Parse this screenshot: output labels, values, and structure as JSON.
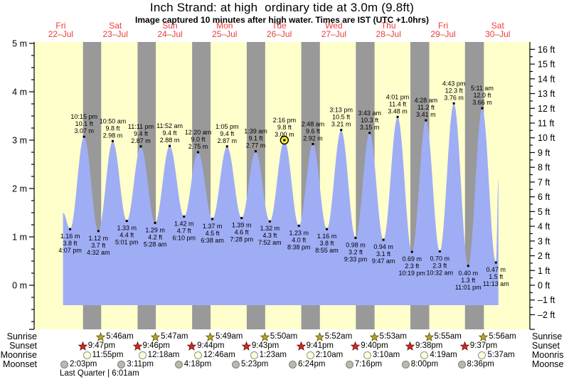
{
  "title": "Inch Strand: at high  ordinary tide at 3.0m (9.8ft)",
  "subtitle": "Image captured 10 minutes after high water. Times are IST (UTC +1.0hrs)",
  "colors": {
    "day_bg": "#ffffcc",
    "night_band": "#999999",
    "tide_fill": "#9fadf5",
    "day_label": "#ee3b3b",
    "current_marker": "#ffee33",
    "annotation_text": "#000000",
    "axis_text": "#000000",
    "sunrise_star_fill": "#b9a62c",
    "sunrise_star_stroke": "#6f6412",
    "sunset_star_fill": "#d22c20",
    "sunset_star_stroke": "#7c120c",
    "moonrise_moon_fill": "#ffffd9",
    "moonrise_moon_stroke": "#8f8f8f",
    "moonset_moon_fill": "#b9b9ae",
    "moonset_moon_stroke": "#7f7f7f"
  },
  "chart_data": {
    "type": "area",
    "title": "Inch Strand: at high  ordinary tide at 3.0m (9.8ft)",
    "subtitle": "Image captured 10 minutes after high water. Times are IST (UTC +1.0hrs)",
    "x_axis": {
      "days": [
        {
          "name": "Fri",
          "date": "22–Jul"
        },
        {
          "name": "Sat",
          "date": "23–Jul"
        },
        {
          "name": "Sun",
          "date": "24–Jul"
        },
        {
          "name": "Mon",
          "date": "25–Jul"
        },
        {
          "name": "Tue",
          "date": "26–Jul"
        },
        {
          "name": "Wed",
          "date": "27–Jul"
        },
        {
          "name": "Thu",
          "date": "28–Jul"
        },
        {
          "name": "Fri",
          "date": "29–Jul"
        },
        {
          "name": "Sat",
          "date": "30–Jul"
        }
      ]
    },
    "y_axis_left": {
      "unit": "m",
      "ticks": [
        5,
        4,
        3,
        2,
        1,
        0
      ],
      "minor_step": 0.25,
      "range_m": [
        -0.93,
        5.03
      ]
    },
    "y_axis_right": {
      "unit": "ft",
      "ticks": [
        16,
        15,
        14,
        13,
        12,
        11,
        10,
        9,
        8,
        7,
        6,
        5,
        4,
        3,
        2,
        1,
        0,
        -1,
        -2
      ],
      "minor_step": 0.5
    },
    "tide_events": [
      {
        "kind": "low",
        "time": "4:07 pm",
        "ft": "3.8 ft",
        "m": "1.16 m",
        "day": 0,
        "hour": 16.117,
        "height_m": 1.16
      },
      {
        "kind": "high",
        "time": "10:15 pm",
        "ft": "10.1 ft",
        "m": "3.07 m",
        "day": 0,
        "hour": 22.25,
        "height_m": 3.07
      },
      {
        "kind": "low",
        "time": "4:32 am",
        "ft": "3.7 ft",
        "m": "1.12 m",
        "day": 1,
        "hour": 4.533,
        "height_m": 1.12
      },
      {
        "kind": "high",
        "time": "10:50 am",
        "ft": "9.8 ft",
        "m": "2.98 m",
        "day": 1,
        "hour": 10.833,
        "height_m": 2.98
      },
      {
        "kind": "low",
        "time": "5:01 pm",
        "ft": "4.4 ft",
        "m": "1.33 m",
        "day": 1,
        "hour": 17.017,
        "height_m": 1.33
      },
      {
        "kind": "high",
        "time": "11:11 pm",
        "ft": "9.4 ft",
        "m": "2.87 m",
        "day": 1,
        "hour": 23.183,
        "height_m": 2.87
      },
      {
        "kind": "low",
        "time": "5:28 am",
        "ft": "4.2 ft",
        "m": "1.29 m",
        "day": 2,
        "hour": 5.467,
        "height_m": 1.29
      },
      {
        "kind": "high",
        "time": "11:52 am",
        "ft": "9.4 ft",
        "m": "2.88 m",
        "day": 2,
        "hour": 11.867,
        "height_m": 2.88
      },
      {
        "kind": "low",
        "time": "6:10 pm",
        "ft": "4.7 ft",
        "m": "1.42 m",
        "day": 2,
        "hour": 18.167,
        "height_m": 1.42
      },
      {
        "kind": "high",
        "time": "12:20 am",
        "ft": "9.0 ft",
        "m": "2.75 m",
        "day": 3,
        "hour": 0.333,
        "height_m": 2.75
      },
      {
        "kind": "low",
        "time": "6:38 am",
        "ft": "4.5 ft",
        "m": "1.37 m",
        "day": 3,
        "hour": 6.633,
        "height_m": 1.37
      },
      {
        "kind": "high",
        "time": "1:05 pm",
        "ft": "9.4 ft",
        "m": "2.87 m",
        "day": 3,
        "hour": 13.083,
        "height_m": 2.87
      },
      {
        "kind": "low",
        "time": "7:28 pm",
        "ft": "4.6 ft",
        "m": "1.39 m",
        "day": 3,
        "hour": 19.467,
        "height_m": 1.39
      },
      {
        "kind": "high",
        "time": "1:39 am",
        "ft": "9.1 ft",
        "m": "2.77 m",
        "day": 4,
        "hour": 1.65,
        "height_m": 2.77
      },
      {
        "kind": "low",
        "time": "7:52 am",
        "ft": "4.3 ft",
        "m": "1.32 m",
        "day": 4,
        "hour": 7.867,
        "height_m": 1.32
      },
      {
        "kind": "high",
        "time": "2:16 pm",
        "ft": "9.8 ft",
        "m": "3.00 m",
        "day": 4,
        "hour": 14.267,
        "height_m": 3.0
      },
      {
        "kind": "low",
        "time": "8:38 pm",
        "ft": "4.0 ft",
        "m": "1.23 m",
        "day": 4,
        "hour": 20.633,
        "height_m": 1.23
      },
      {
        "kind": "high",
        "time": "2:48 am",
        "ft": "9.6 ft",
        "m": "2.92 m",
        "day": 5,
        "hour": 2.8,
        "height_m": 2.92
      },
      {
        "kind": "low",
        "time": "8:55 am",
        "ft": "3.8 ft",
        "m": "1.16 m",
        "day": 5,
        "hour": 8.917,
        "height_m": 1.16
      },
      {
        "kind": "high",
        "time": "3:13 pm",
        "ft": "10.5 ft",
        "m": "3.21 m",
        "day": 5,
        "hour": 15.217,
        "height_m": 3.21
      },
      {
        "kind": "low",
        "time": "9:33 pm",
        "ft": "3.2 ft",
        "m": "0.98 m",
        "day": 5,
        "hour": 21.55,
        "height_m": 0.98
      },
      {
        "kind": "high",
        "time": "3:43 am",
        "ft": "10.3 ft",
        "m": "3.15 m",
        "day": 6,
        "hour": 3.717,
        "height_m": 3.15
      },
      {
        "kind": "low",
        "time": "9:47 am",
        "ft": "3.1 ft",
        "m": "0.94 m",
        "day": 6,
        "hour": 9.783,
        "height_m": 0.94
      },
      {
        "kind": "high",
        "time": "4:01 pm",
        "ft": "11.4 ft",
        "m": "3.48 m",
        "day": 6,
        "hour": 16.017,
        "height_m": 3.48
      },
      {
        "kind": "low",
        "time": "10:19 pm",
        "ft": "2.3 ft",
        "m": "0.69 m",
        "day": 6,
        "hour": 22.317,
        "height_m": 0.69
      },
      {
        "kind": "high",
        "time": "4:28 am",
        "ft": "11.2 ft",
        "m": "3.41 m",
        "day": 7,
        "hour": 4.467,
        "height_m": 3.41
      },
      {
        "kind": "low",
        "time": "10:32 am",
        "ft": "2.3 ft",
        "m": "0.70 m",
        "day": 7,
        "hour": 10.533,
        "height_m": 0.7
      },
      {
        "kind": "high",
        "time": "4:43 pm",
        "ft": "12.3 ft",
        "m": "3.76 m",
        "day": 7,
        "hour": 16.717,
        "height_m": 3.76
      },
      {
        "kind": "low",
        "time": "11:01 pm",
        "ft": "1.3 ft",
        "m": "0.40 m",
        "day": 7,
        "hour": 23.017,
        "height_m": 0.4
      },
      {
        "kind": "high",
        "time": "5:11 am",
        "ft": "12.0 ft",
        "m": "3.66 m",
        "day": 8,
        "hour": 5.183,
        "height_m": 3.66
      },
      {
        "kind": "low",
        "time": "11:13 am",
        "ft": "1.5 ft",
        "m": "0.47 m",
        "day": 8,
        "hour": 11.217,
        "height_m": 0.47
      }
    ],
    "current_event_index": 15,
    "curve_edges": {
      "start": {
        "day": 0,
        "hour": 13.0,
        "height_m": 1.5
      },
      "end": {
        "day": 8,
        "hour": 12.3,
        "height_m": 2.2
      }
    }
  },
  "astronomy": {
    "rows": [
      {
        "key": "sunrise",
        "label": "Sunrise",
        "events": [
          {
            "time": "5:46am",
            "day": 1,
            "hour": 5.767
          },
          {
            "time": "5:47am",
            "day": 2,
            "hour": 5.783
          },
          {
            "time": "5:49am",
            "day": 3,
            "hour": 5.817
          },
          {
            "time": "5:50am",
            "day": 4,
            "hour": 5.833
          },
          {
            "time": "5:52am",
            "day": 5,
            "hour": 5.867
          },
          {
            "time": "5:53am",
            "day": 6,
            "hour": 5.883
          },
          {
            "time": "5:55am",
            "day": 7,
            "hour": 5.917
          },
          {
            "time": "5:56am",
            "day": 8,
            "hour": 5.933
          }
        ]
      },
      {
        "key": "sunset",
        "label": "Sunset",
        "events": [
          {
            "time": "9:47pm",
            "day": 0,
            "hour": 21.783
          },
          {
            "time": "9:46pm",
            "day": 1,
            "hour": 21.767
          },
          {
            "time": "9:44pm",
            "day": 2,
            "hour": 21.733
          },
          {
            "time": "9:43pm",
            "day": 3,
            "hour": 21.717
          },
          {
            "time": "9:41pm",
            "day": 4,
            "hour": 21.683
          },
          {
            "time": "9:40pm",
            "day": 5,
            "hour": 21.667
          },
          {
            "time": "9:38pm",
            "day": 6,
            "hour": 21.633
          },
          {
            "time": "9:37pm",
            "day": 7,
            "hour": 21.617
          }
        ]
      },
      {
        "key": "moonrise",
        "label": "Moonrise",
        "events": [
          {
            "time": "11:55pm",
            "day": 0,
            "hour": 23.917
          },
          {
            "time": "12:18am",
            "day": 2,
            "hour": 0.3
          },
          {
            "time": "12:46am",
            "day": 3,
            "hour": 0.767
          },
          {
            "time": "1:23am",
            "day": 4,
            "hour": 1.383
          },
          {
            "time": "2:10am",
            "day": 5,
            "hour": 2.167
          },
          {
            "time": "3:10am",
            "day": 6,
            "hour": 3.167
          },
          {
            "time": "4:19am",
            "day": 7,
            "hour": 4.317
          },
          {
            "time": "5:37am",
            "day": 8,
            "hour": 5.617
          }
        ]
      },
      {
        "key": "moonset",
        "label": "Moonset",
        "events": [
          {
            "time": "2:03pm",
            "day": 0,
            "hour": 14.05
          },
          {
            "time": "3:11pm",
            "day": 1,
            "hour": 15.183
          },
          {
            "time": "4:18pm",
            "day": 2,
            "hour": 16.3
          },
          {
            "time": "5:23pm",
            "day": 3,
            "hour": 17.383
          },
          {
            "time": "6:24pm",
            "day": 4,
            "hour": 18.4
          },
          {
            "time": "7:16pm",
            "day": 5,
            "hour": 19.267
          },
          {
            "time": "8:00pm",
            "day": 6,
            "hour": 20.0
          },
          {
            "time": "8:36pm",
            "day": 7,
            "hour": 20.6
          }
        ]
      }
    ],
    "moon_phase": "Last Quarter | 6:01am"
  }
}
